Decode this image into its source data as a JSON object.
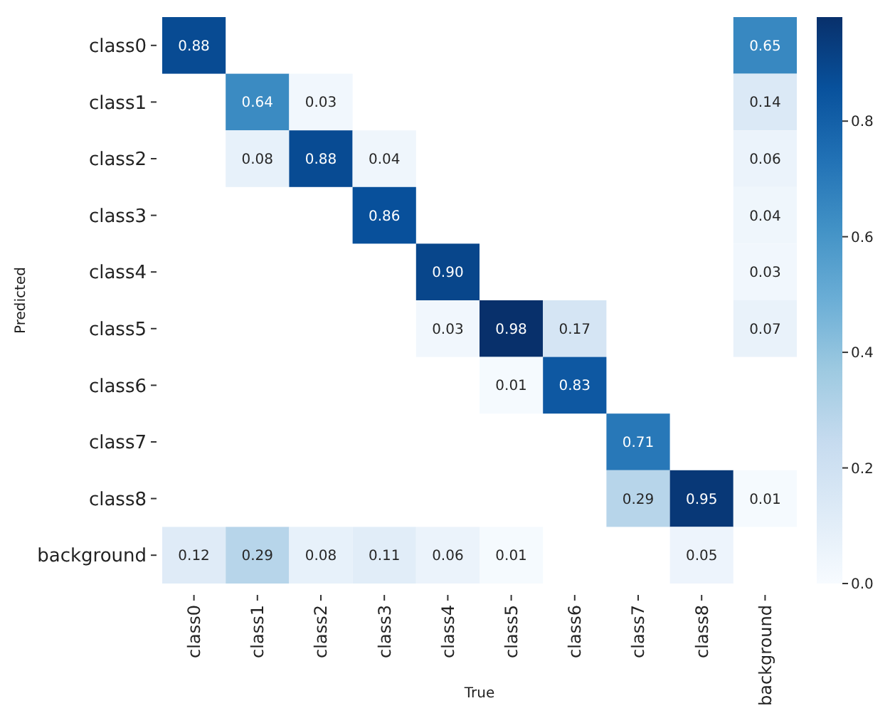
{
  "chart_data": {
    "type": "heatmap",
    "xlabel": "True",
    "ylabel": "Predicted",
    "categories": [
      "class0",
      "class1",
      "class2",
      "class3",
      "class4",
      "class5",
      "class6",
      "class7",
      "class8",
      "background"
    ],
    "y_categories": [
      "class0",
      "class1",
      "class2",
      "class3",
      "class4",
      "class5",
      "class6",
      "class7",
      "class8",
      "background"
    ],
    "cells": [
      [
        0.88,
        null,
        null,
        null,
        null,
        null,
        null,
        null,
        null,
        0.65
      ],
      [
        null,
        0.64,
        0.03,
        null,
        null,
        null,
        null,
        null,
        null,
        0.14
      ],
      [
        null,
        0.08,
        0.88,
        0.04,
        null,
        null,
        null,
        null,
        null,
        0.06
      ],
      [
        null,
        null,
        null,
        0.86,
        null,
        null,
        null,
        null,
        null,
        0.04
      ],
      [
        null,
        null,
        null,
        null,
        0.9,
        null,
        null,
        null,
        null,
        0.03
      ],
      [
        null,
        null,
        null,
        null,
        0.03,
        0.98,
        0.17,
        null,
        null,
        0.07
      ],
      [
        null,
        null,
        null,
        null,
        null,
        0.01,
        0.83,
        null,
        null,
        null
      ],
      [
        null,
        null,
        null,
        null,
        null,
        null,
        null,
        0.71,
        null,
        null
      ],
      [
        null,
        null,
        null,
        null,
        null,
        null,
        null,
        0.29,
        0.95,
        0.01
      ],
      [
        0.12,
        0.29,
        0.08,
        0.11,
        0.06,
        0.01,
        null,
        null,
        0.05,
        null
      ]
    ],
    "cell_labels": [
      [
        "0.88",
        null,
        null,
        null,
        null,
        null,
        null,
        null,
        null,
        "0.65"
      ],
      [
        null,
        "0.64",
        "0.03",
        null,
        null,
        null,
        null,
        null,
        null,
        "0.14"
      ],
      [
        null,
        "0.08",
        "0.88",
        "0.04",
        null,
        null,
        null,
        null,
        null,
        "0.06"
      ],
      [
        null,
        null,
        null,
        "0.86",
        null,
        null,
        null,
        null,
        null,
        "0.04"
      ],
      [
        null,
        null,
        null,
        null,
        "0.90",
        null,
        null,
        null,
        null,
        "0.03"
      ],
      [
        null,
        null,
        null,
        null,
        "0.03",
        "0.98",
        "0.17",
        null,
        null,
        "0.07"
      ],
      [
        null,
        null,
        null,
        null,
        null,
        "0.01",
        "0.83",
        null,
        null,
        null
      ],
      [
        null,
        null,
        null,
        null,
        null,
        null,
        null,
        "0.71",
        null,
        null
      ],
      [
        null,
        null,
        null,
        null,
        null,
        null,
        null,
        "0.29",
        "0.95",
        "0.01"
      ],
      [
        "0.12",
        "0.29",
        "0.08",
        "0.11",
        "0.06",
        "0.01",
        null,
        null,
        "0.05",
        null
      ]
    ],
    "clim": [
      0,
      0.98
    ],
    "cticks": [
      {
        "value": 0,
        "label": "0.0"
      },
      0.2,
      0.4,
      0.6,
      0.8
    ],
    "data_labels": true
  }
}
